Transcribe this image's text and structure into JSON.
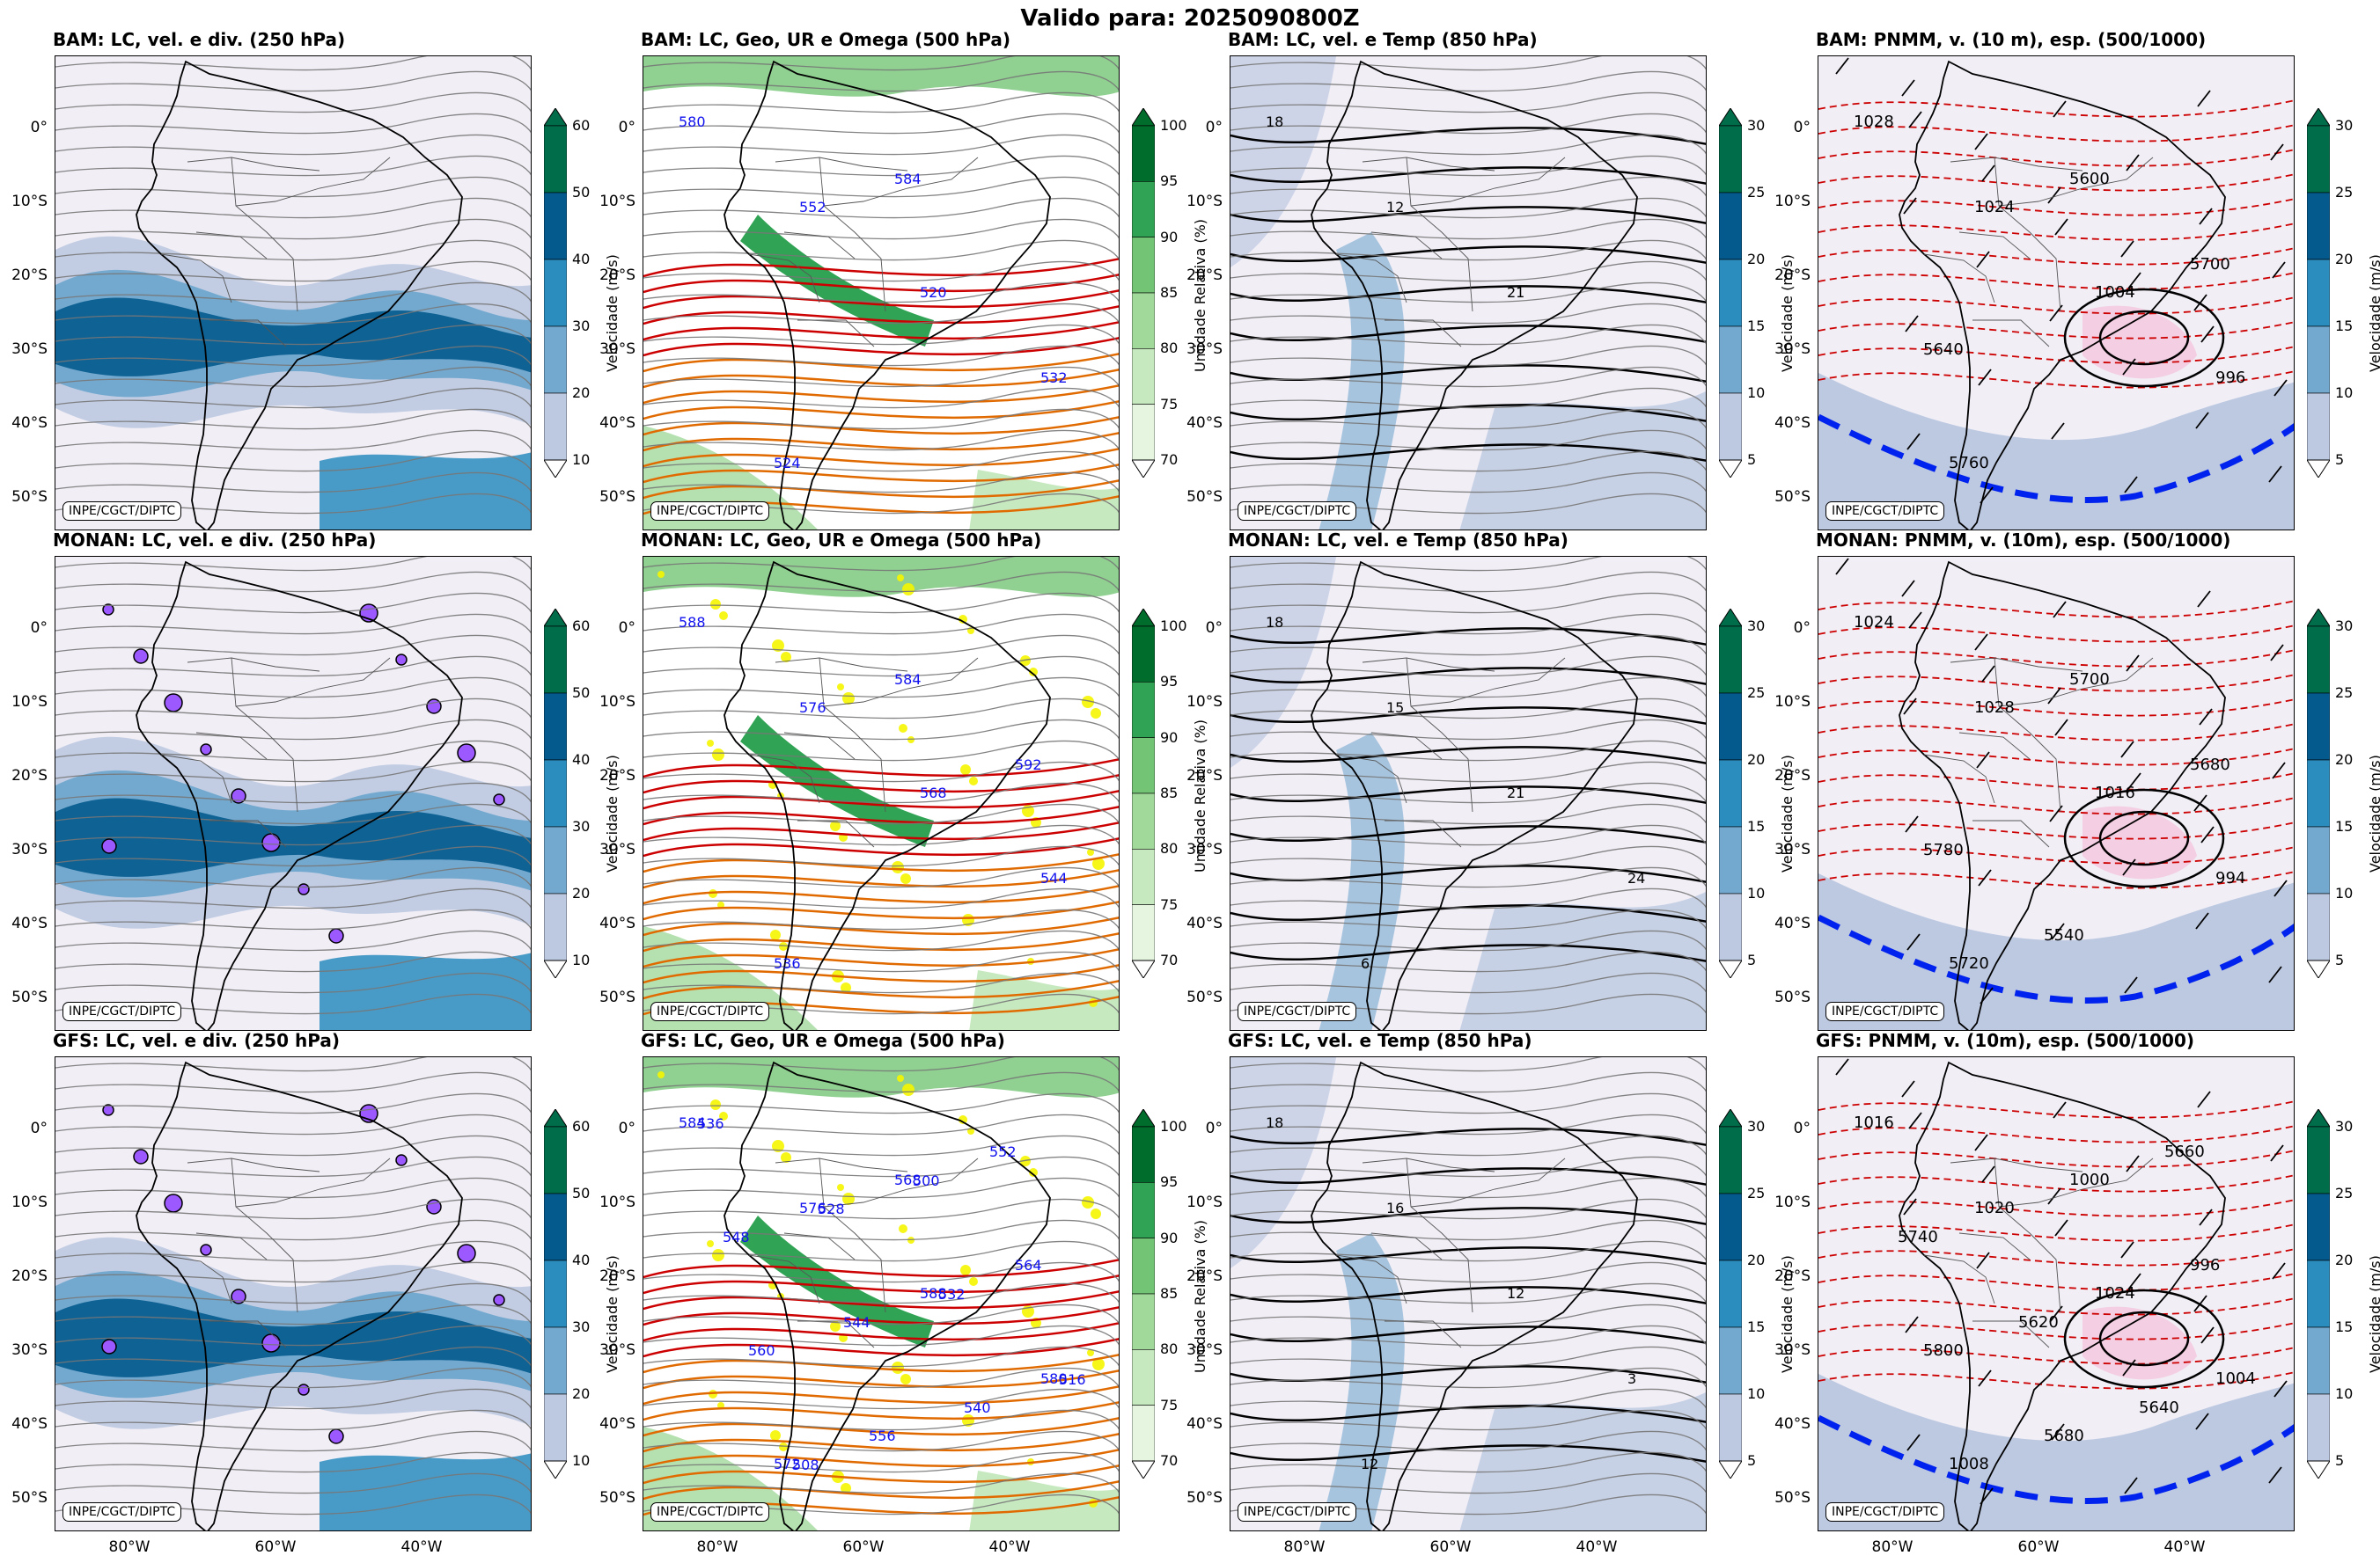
{
  "title": "Valido para: 2025090800Z",
  "credit": "INPE/CGCT/DIPTC",
  "latitudes": [
    "0°",
    "10°S",
    "20°S",
    "30°S",
    "40°S",
    "50°S"
  ],
  "longitudes": [
    "80°W",
    "60°W",
    "40°W"
  ],
  "colors": {
    "speed_scale": [
      "#f1eef6",
      "#bdc9e1",
      "#74a9cf",
      "#2b8cbe",
      "#045a8d",
      "#006d4a"
    ],
    "rh_scale": [
      "#f7fcf5",
      "#e5f5e0",
      "#c7e9c0",
      "#a1d99b",
      "#74c476",
      "#31a354",
      "#006d2c"
    ],
    "geo_contour": "#cc0000",
    "thickness_contour": "#cc0000",
    "front_line": "#0022ee",
    "streamline": "#777777"
  },
  "colorbars": {
    "speed250": {
      "ticks": [
        "60",
        "50",
        "40",
        "30",
        "20",
        "10"
      ],
      "label": "Velocidade (m/s)"
    },
    "rh500": {
      "ticks": [
        "100",
        "95",
        "90",
        "85",
        "80",
        "75",
        "70"
      ],
      "label": "Umidade Relativa (%)"
    },
    "speed850": {
      "ticks": [
        "30",
        "25",
        "20",
        "15",
        "10",
        "5"
      ],
      "label": "Velocidade (m/s)"
    },
    "speed10m": {
      "ticks": [
        "30",
        "25",
        "20",
        "15",
        "10",
        "5"
      ],
      "label": "Velocidade (m/s)"
    }
  },
  "rows": [
    {
      "model": "BAM",
      "titles": [
        "BAM: LC, vel. e div. (250 hPa)",
        "BAM: LC, Geo, UR e Omega (500 hPa)",
        "BAM: LC, vel. e Temp (850 hPa)",
        "BAM: PNMM, v. (10 m), esp. (500/1000)"
      ],
      "geo_labels": [
        "580",
        "552",
        "520",
        "532",
        "524",
        "584"
      ],
      "temp_labels": [
        "18",
        "12",
        "21"
      ],
      "pnmm_labels": [
        "1028",
        "1024",
        "1004",
        "996",
        "5760",
        "5600",
        "5700",
        "5640"
      ]
    },
    {
      "model": "MONAN",
      "titles": [
        "MONAN: LC, vel. e div. (250 hPa)",
        "MONAN: LC, Geo, UR e Omega (500 hPa)",
        "MONAN: LC, vel. e Temp (850 hPa)",
        "MONAN: PNMM, v. (10m), esp. (500/1000)"
      ],
      "geo_labels": [
        "588",
        "576",
        "568",
        "544",
        "536",
        "584",
        "592"
      ],
      "temp_labels": [
        "18",
        "15",
        "21",
        "24",
        "6"
      ],
      "pnmm_labels": [
        "1024",
        "1028",
        "1016",
        "994",
        "5720",
        "5700",
        "5680",
        "5780",
        "5540"
      ]
    },
    {
      "model": "GFS",
      "titles": [
        "GFS: LC, vel. e div. (250 hPa)",
        "GFS: LC, Geo, UR e Omega (500 hPa)",
        "GFS: LC, vel. e Temp (850 hPa)",
        "GFS: PNMM, v. (10m), esp. (500/1000)"
      ],
      "geo_labels": [
        "584",
        "576",
        "588",
        "580",
        "572",
        "568",
        "564",
        "560",
        "556",
        "552",
        "548",
        "544",
        "540",
        "536",
        "528",
        "532",
        "516",
        "508",
        "500"
      ],
      "temp_labels": [
        "18",
        "16",
        "12",
        "3",
        "12"
      ],
      "pnmm_labels": [
        "1016",
        "1020",
        "1024",
        "1004",
        "1008",
        "1000",
        "996",
        "5800",
        "5680",
        "5660",
        "5740",
        "5620",
        "5640"
      ]
    }
  ]
}
